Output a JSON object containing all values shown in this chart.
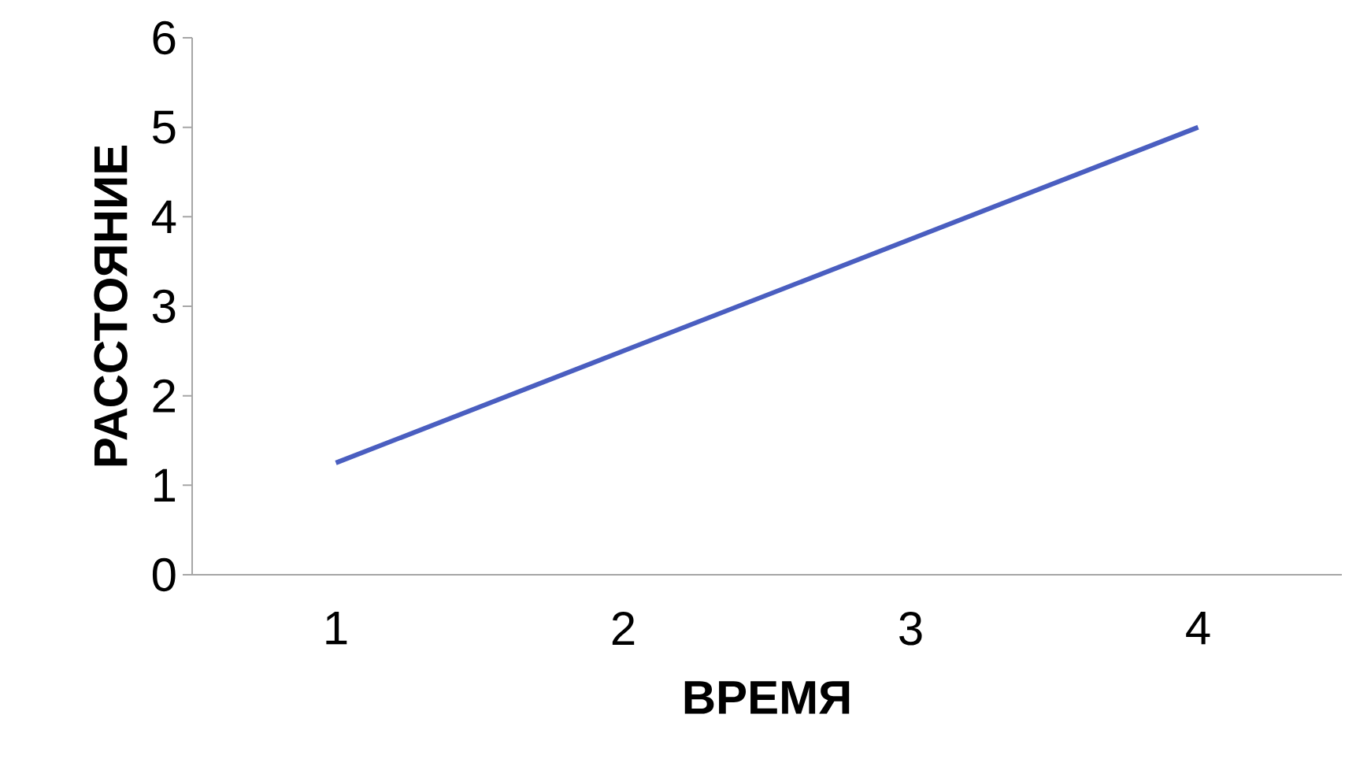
{
  "chart_data": {
    "type": "line",
    "xlabel": "ВРЕМЯ",
    "ylabel": "РАССТОЯНИЕ",
    "categories": [
      "1",
      "2",
      "3",
      "4"
    ],
    "values": [
      1.25,
      2.5,
      3.75,
      5
    ],
    "color": "#4a5ec0",
    "ylim": [
      0,
      6
    ],
    "yticks": [
      0,
      1,
      2,
      3,
      4,
      5,
      6
    ]
  }
}
